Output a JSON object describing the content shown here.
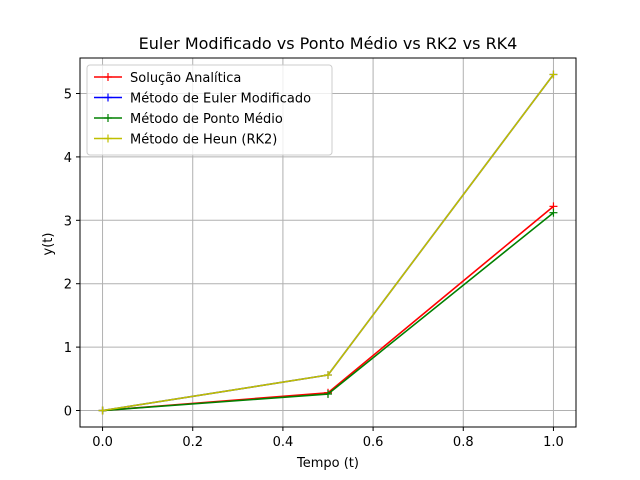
{
  "chart_data": {
    "type": "line",
    "title": "Euler Modificado vs Ponto Médio vs RK2 vs RK4",
    "xlabel": "Tempo (t)",
    "ylabel": "y(t)",
    "xlim": [
      -0.05,
      1.05
    ],
    "ylim": [
      -0.26,
      5.56
    ],
    "xticks": [
      0.0,
      0.2,
      0.4,
      0.6,
      0.8,
      1.0
    ],
    "xtick_labels": [
      "0.0",
      "0.2",
      "0.4",
      "0.6",
      "0.8",
      "1.0"
    ],
    "yticks": [
      0,
      1,
      2,
      3,
      4,
      5
    ],
    "ytick_labels": [
      "0",
      "1",
      "2",
      "3",
      "4",
      "5"
    ],
    "grid": true,
    "legend_position": "top-left",
    "x": [
      0.0,
      0.5,
      1.0
    ],
    "series": [
      {
        "name": "Solução Analítica",
        "color": "#ff0000",
        "marker": "+",
        "values": [
          0.0,
          0.28,
          3.22
        ]
      },
      {
        "name": "Método de Euler Modificado",
        "color": "#0000ff",
        "marker": "+",
        "values": [
          0.0,
          0.56,
          5.3
        ]
      },
      {
        "name": "Método de Ponto Médio",
        "color": "#008000",
        "marker": "+",
        "values": [
          0.0,
          0.26,
          3.12
        ]
      },
      {
        "name": "Método de Heun (RK2)",
        "color": "#bfbf00",
        "marker": "+",
        "values": [
          0.0,
          0.56,
          5.3
        ]
      }
    ]
  }
}
